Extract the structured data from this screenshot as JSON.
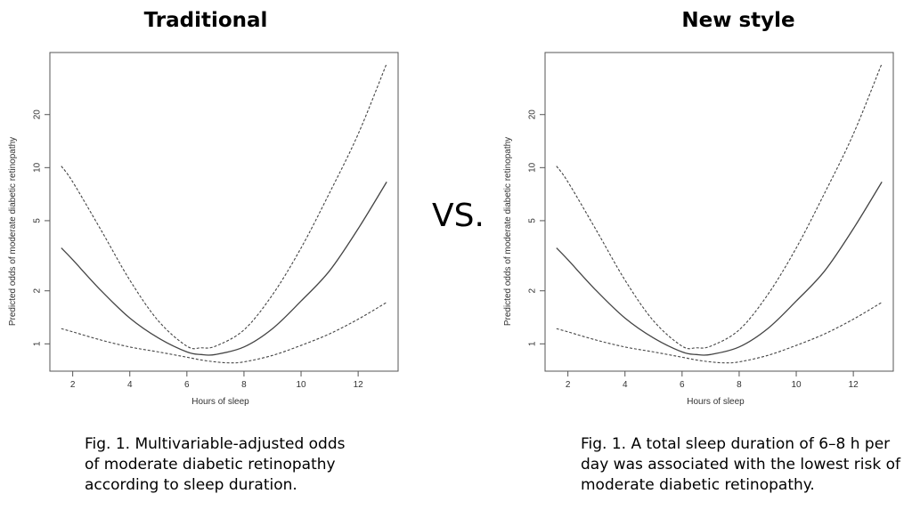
{
  "vs_label": "VS.",
  "panels": [
    {
      "heading": "Traditional",
      "caption": "Fig. 1. Multivariable-adjusted odds of moderate diabetic retinopathy according to sleep duration."
    },
    {
      "heading": "New style",
      "caption": "Fig. 1. A total sleep duration of 6–8 h per day was associated with the lowest risk of moderate diabetic retinopathy."
    }
  ],
  "chart_data": [
    {
      "type": "line",
      "title": "",
      "xlabel": "Hours of sleep",
      "ylabel": "Predicted odds of moderate diabetic retinopathy",
      "x_ticks": [
        2,
        4,
        6,
        8,
        10,
        12
      ],
      "y_ticks": [
        1,
        2,
        5,
        10,
        20
      ],
      "y_scale": "log",
      "xlim": [
        1.2,
        13.4
      ],
      "ylim": [
        0.7,
        45
      ],
      "grid": false,
      "series": [
        {
          "style": "solid",
          "x": [
            1.6,
            2,
            3,
            4,
            5,
            6,
            6.5,
            7,
            8,
            9,
            10,
            11,
            12,
            13
          ],
          "y": [
            3.5,
            3.0,
            2.0,
            1.4,
            1.08,
            0.9,
            0.87,
            0.87,
            0.96,
            1.22,
            1.75,
            2.6,
            4.5,
            8.3
          ]
        },
        {
          "style": "dashed",
          "x": [
            1.6,
            2,
            3,
            4,
            5,
            6,
            6.5,
            7,
            8,
            9,
            10,
            11,
            12,
            13
          ],
          "y": [
            10.2,
            8.3,
            4.4,
            2.3,
            1.35,
            0.97,
            0.95,
            0.97,
            1.2,
            1.9,
            3.5,
            7.2,
            15.5,
            39
          ]
        },
        {
          "style": "dashed",
          "x": [
            1.6,
            2,
            3,
            4,
            5,
            6,
            6.5,
            7,
            7.5,
            8,
            9,
            10,
            11,
            12,
            13
          ],
          "y": [
            1.22,
            1.17,
            1.05,
            0.96,
            0.9,
            0.84,
            0.81,
            0.79,
            0.78,
            0.79,
            0.86,
            0.98,
            1.14,
            1.38,
            1.72
          ]
        }
      ]
    },
    {
      "type": "line",
      "title": "",
      "xlabel": "Hours of sleep",
      "ylabel": "Predicted odds of moderate diabetic retinopathy",
      "x_ticks": [
        2,
        4,
        6,
        8,
        10,
        12
      ],
      "y_ticks": [
        1,
        2,
        5,
        10,
        20
      ],
      "y_scale": "log",
      "xlim": [
        1.2,
        13.4
      ],
      "ylim": [
        0.7,
        45
      ],
      "grid": false,
      "series": [
        {
          "style": "solid",
          "x": [
            1.6,
            2,
            3,
            4,
            5,
            6,
            6.5,
            7,
            8,
            9,
            10,
            11,
            12,
            13
          ],
          "y": [
            3.5,
            3.0,
            2.0,
            1.4,
            1.08,
            0.9,
            0.87,
            0.87,
            0.96,
            1.22,
            1.75,
            2.6,
            4.5,
            8.3
          ]
        },
        {
          "style": "dashed",
          "x": [
            1.6,
            2,
            3,
            4,
            5,
            6,
            6.5,
            7,
            8,
            9,
            10,
            11,
            12,
            13
          ],
          "y": [
            10.2,
            8.3,
            4.4,
            2.3,
            1.35,
            0.97,
            0.95,
            0.97,
            1.2,
            1.9,
            3.5,
            7.2,
            15.5,
            39
          ]
        },
        {
          "style": "dashed",
          "x": [
            1.6,
            2,
            3,
            4,
            5,
            6,
            6.5,
            7,
            7.5,
            8,
            9,
            10,
            11,
            12,
            13
          ],
          "y": [
            1.22,
            1.17,
            1.05,
            0.96,
            0.9,
            0.84,
            0.81,
            0.79,
            0.78,
            0.79,
            0.86,
            0.98,
            1.14,
            1.38,
            1.72
          ]
        }
      ]
    }
  ]
}
